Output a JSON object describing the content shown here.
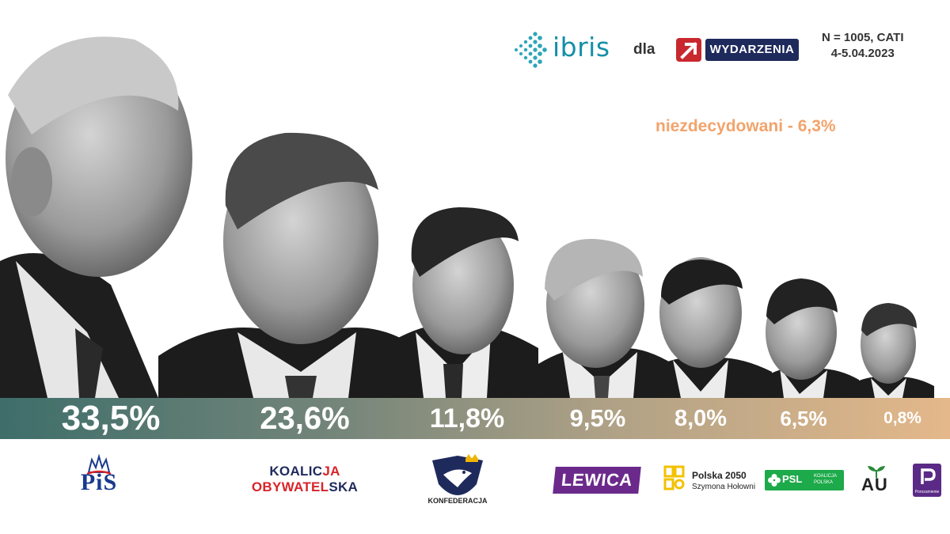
{
  "header": {
    "pollster": "ibris",
    "connector": "dla",
    "client": "WYDARZENIA",
    "sample": "N = 1005, CATI",
    "dates": "4-5.04.2023"
  },
  "undecided": "niezdecydowani - 6,3%",
  "colors": {
    "band_start": "#3e6e6a",
    "band_end": "#e4b88a",
    "undecided_text": "#f2a36b",
    "ibris": "#148fa6",
    "wydarzenia_bg": "#1f2a5c",
    "wydarzenia_arrow": "#c8282e"
  },
  "parties": {
    "pis": {
      "logo_text": "PiS"
    },
    "ko": {
      "line1_a": "KOALIC",
      "line1_b": "JA",
      "line2_a": "OBYWATEL",
      "line2_b": "SKA"
    },
    "konf": {
      "logo_text": "KONFEDERACJA"
    },
    "lewica": {
      "logo_text": "LEWICA"
    },
    "p2050": {
      "line1": "Polska 2050",
      "line2": "Szymona Hołowni"
    },
    "psl": {
      "line1": "PSL",
      "line2": "KOALICJA POLSKA"
    },
    "au": {
      "logo_text": "AU"
    },
    "por": {
      "logo_text": "Porozumienie"
    }
  },
  "chart_data": {
    "type": "bar",
    "categories": [
      "PiS",
      "KOALICJA OBYWATELSKA",
      "KONFEDERACJA",
      "LEWICA",
      "Polska 2050",
      "PSL",
      "AU / Porozumienie"
    ],
    "labels": [
      "33,5%",
      "23,6%",
      "11,8%",
      "9,5%",
      "8,0%",
      "6,5%",
      "0,8%"
    ],
    "values": [
      33.5,
      23.6,
      11.8,
      9.5,
      8.0,
      6.5,
      0.8
    ],
    "title": "",
    "xlabel": "",
    "ylabel": "",
    "ylim": [
      0,
      35
    ],
    "grid": false,
    "annotations": [
      "niezdecydowani - 6,3%"
    ]
  }
}
